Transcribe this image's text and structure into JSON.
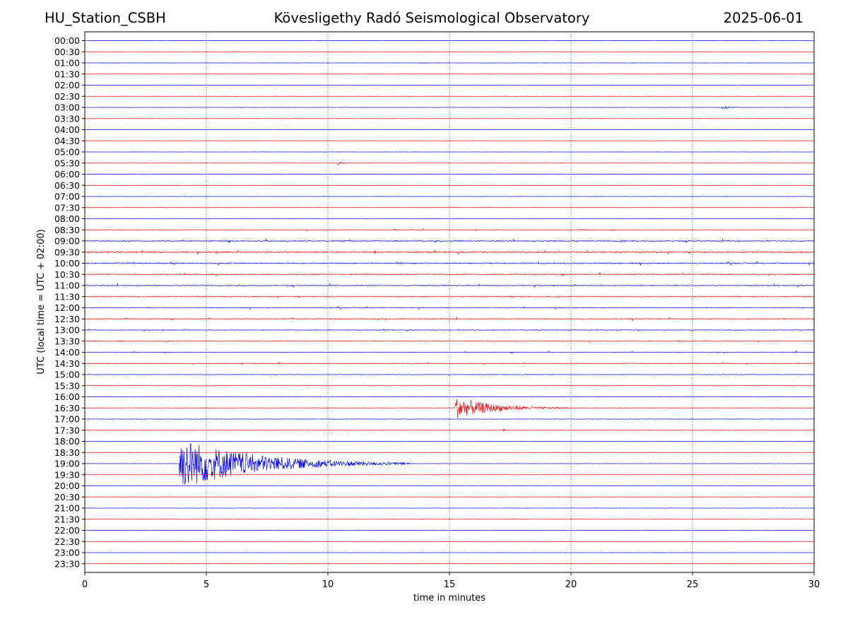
{
  "header": {
    "station": "HU_Station_CSBH",
    "observatory": "Kövesligethy Radó Seismological Observatory",
    "date": "2025-06-01"
  },
  "chart_data": {
    "type": "line",
    "title": "Kövesligethy Radó Seismological Observatory",
    "xlabel": "time in minutes",
    "ylabel": "UTC (local time = UTC + 02:00)",
    "xlim": [
      0,
      30
    ],
    "x_ticks": [
      0,
      5,
      10,
      15,
      20,
      25,
      30
    ],
    "grid": "vertical dotted at x ticks",
    "rows": [
      "00:00",
      "00:30",
      "01:00",
      "01:30",
      "02:00",
      "02:30",
      "03:00",
      "03:30",
      "04:00",
      "04:30",
      "05:00",
      "05:30",
      "06:00",
      "06:30",
      "07:00",
      "07:30",
      "08:00",
      "08:30",
      "09:00",
      "09:30",
      "10:00",
      "10:30",
      "11:00",
      "11:30",
      "12:00",
      "12:30",
      "13:00",
      "13:30",
      "14:00",
      "14:30",
      "15:00",
      "15:30",
      "16:00",
      "16:30",
      "17:00",
      "17:30",
      "18:00",
      "18:30",
      "19:00",
      "19:30",
      "20:00",
      "20:30",
      "21:00",
      "21:30",
      "22:00",
      "22:30",
      "23:00",
      "23:30"
    ],
    "series_colors": [
      "#0000ff",
      "#ff0000"
    ],
    "noise_level": [
      0.15,
      0.15,
      0.15,
      0.15,
      0.15,
      0.15,
      0.15,
      0.15,
      0.15,
      0.15,
      0.15,
      0.15,
      0.15,
      0.15,
      0.2,
      0.2,
      0.3,
      0.4,
      0.6,
      0.8,
      0.7,
      0.6,
      0.5,
      0.5,
      0.5,
      0.5,
      0.4,
      0.4,
      0.4,
      0.4,
      0.3,
      0.3,
      0.3,
      0.3,
      0.3,
      0.3,
      0.2,
      0.2,
      0.2,
      0.2,
      0.2,
      0.2,
      0.2,
      0.2,
      0.2,
      0.2,
      0.2,
      0.2
    ],
    "events": [
      {
        "row": "03:00",
        "start": 26.2,
        "duration": 1.2,
        "peak": 2.2
      },
      {
        "row": "05:30",
        "start": 10.4,
        "duration": 0.7,
        "peak": 2.6
      },
      {
        "row": "09:00",
        "start": 22.0,
        "duration": 0.3,
        "peak": 5
      },
      {
        "row": "09:30",
        "start": 11.9,
        "duration": 0.2,
        "peak": 5
      },
      {
        "row": "16:30",
        "start": 15.2,
        "duration": 4.8,
        "peak": 14
      },
      {
        "row": "17:30",
        "start": 17.2,
        "duration": 0.2,
        "peak": 4
      },
      {
        "row": "19:00",
        "start": 3.9,
        "duration": 9.5,
        "peak": 33
      }
    ]
  }
}
